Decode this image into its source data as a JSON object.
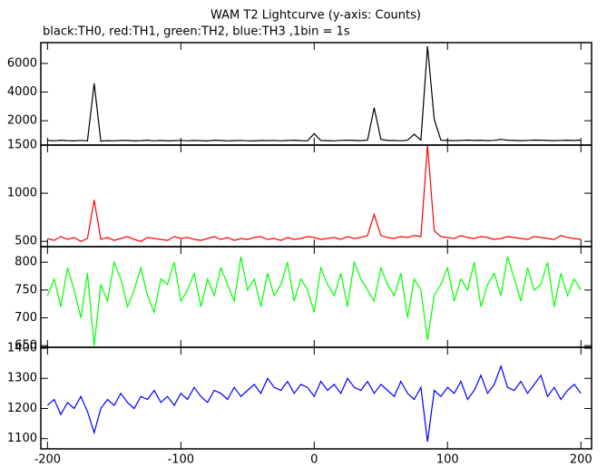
{
  "title": "WAM T2 Lightcurve (y-axis: Counts)",
  "subtitle": "black:TH0, red:TH1, green:TH2, blue:TH3 ,1bin = 1s",
  "chart_data": [
    {
      "type": "line",
      "xlim": [
        -205,
        208
      ],
      "xticks": [
        -200,
        -100,
        0,
        100,
        200
      ],
      "ylim": [
        300,
        7450
      ],
      "yticks": [
        2000,
        4000,
        6000
      ],
      "x": [
        -200,
        -195,
        -190,
        -185,
        -180,
        -175,
        -170,
        -165,
        -160,
        -155,
        -150,
        -145,
        -140,
        -135,
        -130,
        -125,
        -120,
        -115,
        -110,
        -105,
        -100,
        -95,
        -90,
        -85,
        -80,
        -75,
        -70,
        -65,
        -60,
        -55,
        -50,
        -45,
        -40,
        -35,
        -30,
        -25,
        -20,
        -15,
        -10,
        -5,
        0,
        5,
        10,
        15,
        20,
        25,
        30,
        35,
        40,
        45,
        50,
        55,
        60,
        65,
        70,
        75,
        80,
        85,
        90,
        95,
        100,
        105,
        110,
        115,
        120,
        125,
        130,
        135,
        140,
        145,
        150,
        155,
        160,
        165,
        170,
        175,
        180,
        185,
        190,
        195,
        200
      ],
      "series": [
        {
          "name": "TH0",
          "color": "#000000",
          "values": [
            620,
            600,
            640,
            610,
            590,
            630,
            600,
            4600,
            580,
            610,
            600,
            630,
            620,
            590,
            610,
            640,
            600,
            620,
            590,
            610,
            630,
            600,
            620,
            610,
            590,
            640,
            620,
            600,
            610,
            630,
            600,
            590,
            620,
            610,
            630,
            600,
            620,
            640,
            610,
            600,
            1100,
            620,
            610,
            600,
            630,
            640,
            620,
            610,
            650,
            2900,
            700,
            620,
            630,
            600,
            640,
            1050,
            650,
            7200,
            2100,
            640,
            620,
            610,
            630,
            650,
            620,
            640,
            610,
            630,
            700,
            640,
            620,
            610,
            630,
            650,
            640,
            620,
            610,
            630,
            640,
            620,
            650
          ]
        }
      ]
    },
    {
      "type": "line",
      "xlim": [
        -205,
        208
      ],
      "xticks": [
        -200,
        -100,
        0,
        100,
        200
      ],
      "ylim": [
        445,
        1500
      ],
      "yticks": [
        500,
        1000,
        1500
      ],
      "x": [
        -200,
        -195,
        -190,
        -185,
        -180,
        -175,
        -170,
        -165,
        -160,
        -155,
        -150,
        -145,
        -140,
        -135,
        -130,
        -125,
        -120,
        -115,
        -110,
        -105,
        -100,
        -95,
        -90,
        -85,
        -80,
        -75,
        -70,
        -65,
        -60,
        -55,
        -50,
        -45,
        -40,
        -35,
        -30,
        -25,
        -20,
        -15,
        -10,
        -5,
        0,
        5,
        10,
        15,
        20,
        25,
        30,
        35,
        40,
        45,
        50,
        55,
        60,
        65,
        70,
        75,
        80,
        85,
        90,
        95,
        100,
        105,
        110,
        115,
        120,
        125,
        130,
        135,
        140,
        145,
        150,
        155,
        160,
        165,
        170,
        175,
        180,
        185,
        190,
        195,
        200
      ],
      "series": [
        {
          "name": "TH1",
          "color": "#ff0000",
          "values": [
            530,
            510,
            550,
            520,
            540,
            500,
            530,
            930,
            520,
            540,
            510,
            530,
            550,
            520,
            500,
            540,
            530,
            520,
            510,
            550,
            530,
            540,
            520,
            510,
            530,
            550,
            520,
            540,
            510,
            530,
            520,
            540,
            550,
            520,
            530,
            510,
            540,
            520,
            530,
            550,
            540,
            520,
            530,
            540,
            520,
            550,
            530,
            540,
            560,
            780,
            560,
            540,
            530,
            550,
            540,
            560,
            550,
            1500,
            610,
            550,
            540,
            530,
            560,
            540,
            530,
            550,
            540,
            520,
            530,
            550,
            540,
            530,
            520,
            550,
            540,
            530,
            520,
            560,
            540,
            530,
            520
          ]
        }
      ]
    },
    {
      "type": "line",
      "xlim": [
        -205,
        208
      ],
      "xticks": [
        -200,
        -100,
        0,
        100,
        200
      ],
      "ylim": [
        647,
        828
      ],
      "yticks": [
        650,
        700,
        750,
        800
      ],
      "x": [
        -200,
        -195,
        -190,
        -185,
        -180,
        -175,
        -170,
        -165,
        -160,
        -155,
        -150,
        -145,
        -140,
        -135,
        -130,
        -125,
        -120,
        -115,
        -110,
        -105,
        -100,
        -95,
        -90,
        -85,
        -80,
        -75,
        -70,
        -65,
        -60,
        -55,
        -50,
        -45,
        -40,
        -35,
        -30,
        -25,
        -20,
        -15,
        -10,
        -5,
        0,
        5,
        10,
        15,
        20,
        25,
        30,
        35,
        40,
        45,
        50,
        55,
        60,
        65,
        70,
        75,
        80,
        85,
        90,
        95,
        100,
        105,
        110,
        115,
        120,
        125,
        130,
        135,
        140,
        145,
        150,
        155,
        160,
        165,
        170,
        175,
        180,
        185,
        190,
        195,
        200
      ],
      "series": [
        {
          "name": "TH2",
          "color": "#00ff00",
          "values": [
            740,
            770,
            720,
            790,
            750,
            700,
            780,
            650,
            760,
            730,
            800,
            770,
            720,
            750,
            790,
            740,
            710,
            770,
            760,
            800,
            730,
            750,
            780,
            720,
            770,
            740,
            790,
            760,
            730,
            810,
            750,
            770,
            720,
            780,
            740,
            760,
            800,
            730,
            770,
            750,
            710,
            790,
            760,
            740,
            780,
            720,
            800,
            770,
            750,
            730,
            790,
            760,
            740,
            780,
            700,
            770,
            750,
            660,
            740,
            760,
            790,
            730,
            770,
            750,
            800,
            720,
            760,
            780,
            740,
            810,
            770,
            730,
            790,
            750,
            760,
            800,
            720,
            780,
            740,
            770,
            750
          ]
        }
      ]
    },
    {
      "type": "line",
      "xlim": [
        -205,
        208
      ],
      "xticks": [
        -200,
        -100,
        0,
        100,
        200
      ],
      "ylim": [
        1066,
        1403
      ],
      "yticks": [
        1100,
        1200,
        1300,
        1400
      ],
      "x": [
        -200,
        -195,
        -190,
        -185,
        -180,
        -175,
        -170,
        -165,
        -160,
        -155,
        -150,
        -145,
        -140,
        -135,
        -130,
        -125,
        -120,
        -115,
        -110,
        -105,
        -100,
        -95,
        -90,
        -85,
        -80,
        -75,
        -70,
        -65,
        -60,
        -55,
        -50,
        -45,
        -40,
        -35,
        -30,
        -25,
        -20,
        -15,
        -10,
        -5,
        0,
        5,
        10,
        15,
        20,
        25,
        30,
        35,
        40,
        45,
        50,
        55,
        60,
        65,
        70,
        75,
        80,
        85,
        90,
        95,
        100,
        105,
        110,
        115,
        120,
        125,
        130,
        135,
        140,
        145,
        150,
        155,
        160,
        165,
        170,
        175,
        180,
        185,
        190,
        195,
        200
      ],
      "series": [
        {
          "name": "TH3",
          "color": "#0000ff",
          "values": [
            1210,
            1230,
            1180,
            1220,
            1200,
            1240,
            1190,
            1120,
            1200,
            1230,
            1210,
            1250,
            1220,
            1200,
            1240,
            1230,
            1260,
            1220,
            1240,
            1210,
            1250,
            1230,
            1270,
            1240,
            1220,
            1260,
            1250,
            1230,
            1270,
            1240,
            1260,
            1280,
            1250,
            1300,
            1270,
            1260,
            1290,
            1250,
            1280,
            1270,
            1240,
            1290,
            1260,
            1280,
            1250,
            1300,
            1270,
            1260,
            1290,
            1250,
            1280,
            1260,
            1240,
            1290,
            1250,
            1230,
            1270,
            1090,
            1260,
            1240,
            1270,
            1250,
            1290,
            1230,
            1260,
            1310,
            1250,
            1280,
            1340,
            1270,
            1260,
            1290,
            1250,
            1280,
            1310,
            1240,
            1270,
            1230,
            1260,
            1280,
            1250
          ]
        }
      ]
    }
  ]
}
